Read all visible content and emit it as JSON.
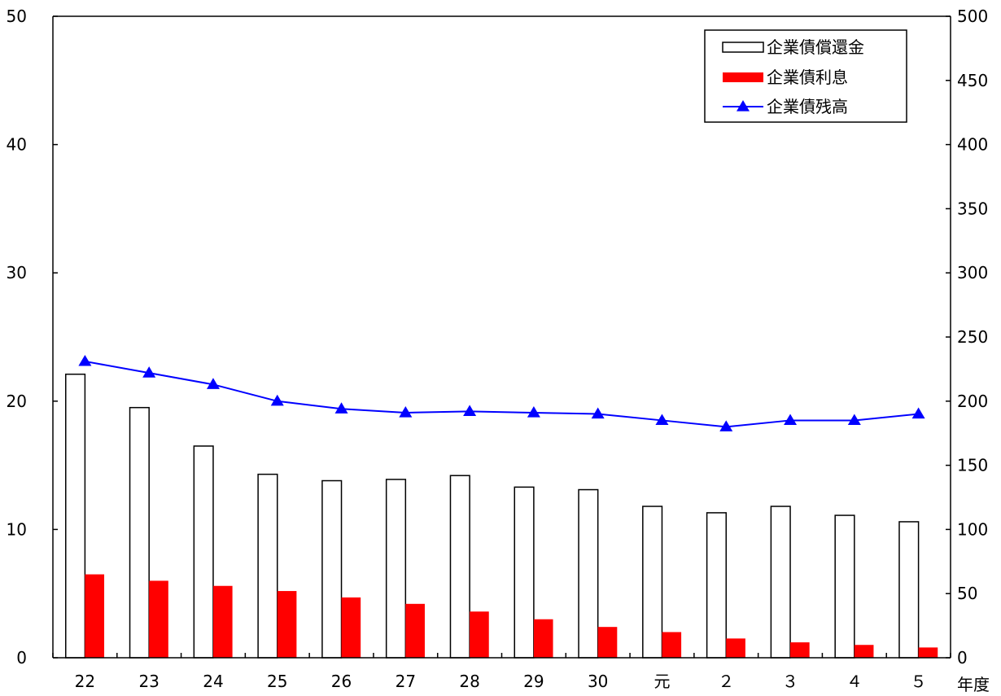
{
  "chart_data": {
    "type": "bar",
    "categories": [
      "22",
      "23",
      "24",
      "25",
      "26",
      "27",
      "28",
      "29",
      "30",
      "元",
      "２",
      "３",
      "４",
      "５"
    ],
    "x_unit_label": "年度",
    "series": [
      {
        "name": "企業債償還金",
        "type": "bar",
        "axis": "left",
        "style": "hollow",
        "color": "#000000",
        "values": [
          22.1,
          19.5,
          16.5,
          14.3,
          13.8,
          13.9,
          14.2,
          13.3,
          13.1,
          11.8,
          11.3,
          11.8,
          11.1,
          10.6
        ]
      },
      {
        "name": "企業債利息",
        "type": "bar",
        "axis": "left",
        "style": "filled",
        "color": "#ff0000",
        "values": [
          6.5,
          6.0,
          5.6,
          5.2,
          4.7,
          4.2,
          3.6,
          3.0,
          2.4,
          2.0,
          1.5,
          1.2,
          1.0,
          0.8
        ]
      },
      {
        "name": "企業債残高",
        "type": "line",
        "axis": "right",
        "marker": "triangle",
        "color": "#0000ff",
        "values": [
          231,
          222,
          213,
          200,
          194,
          191,
          192,
          191,
          190,
          185,
          180,
          185,
          185,
          190
        ]
      }
    ],
    "y_left": {
      "min": 0,
      "max": 50,
      "ticks": [
        0,
        10,
        20,
        30,
        40,
        50
      ]
    },
    "y_right": {
      "min": 0,
      "max": 500,
      "ticks": [
        0,
        50,
        100,
        150,
        200,
        250,
        300,
        350,
        400,
        450,
        500
      ]
    },
    "legend_position": "top-right",
    "grid": false
  }
}
